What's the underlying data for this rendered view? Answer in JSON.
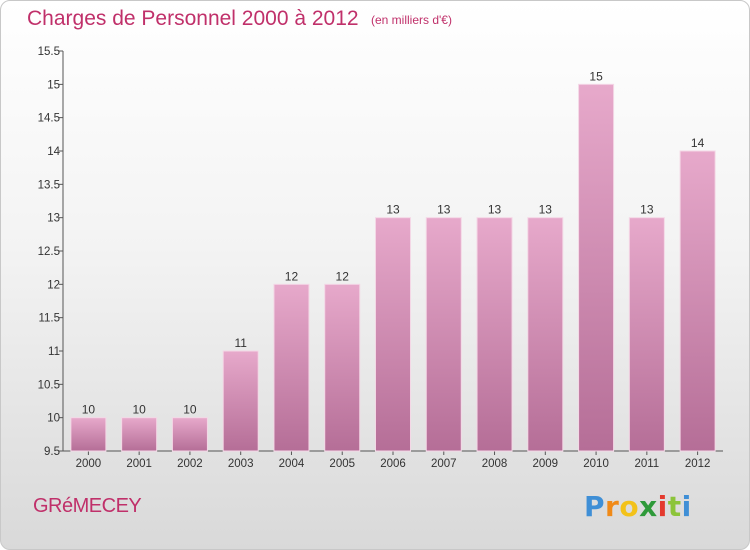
{
  "chart_data": {
    "type": "bar",
    "title": "Charges de Personnel 2000 à 2012",
    "subtitle": "(en milliers d'€)",
    "categories": [
      "2000",
      "2001",
      "2002",
      "2003",
      "2004",
      "2005",
      "2006",
      "2007",
      "2008",
      "2009",
      "2010",
      "2011",
      "2012"
    ],
    "values": [
      10,
      10,
      10,
      11,
      12,
      12,
      13,
      13,
      13,
      13,
      15,
      13,
      14
    ],
    "ylim": [
      9.5,
      15.5
    ],
    "yticks": [
      9.5,
      10,
      10.5,
      11,
      11.5,
      12,
      12.5,
      13,
      13.5,
      14,
      14.5,
      15,
      15.5
    ],
    "ytick_labels": [
      "9.5",
      "10",
      "10.5",
      "11",
      "11.5",
      "12",
      "12.5",
      "13",
      "13.5",
      "14",
      "14.5",
      "15",
      "15.5"
    ],
    "grid": false,
    "legend": "none",
    "bar_color": "#d27aa8"
  },
  "commune": "GRéMECEY",
  "logo": {
    "letters": [
      "P",
      "r",
      "o",
      "x",
      "i",
      "t",
      "i"
    ],
    "colors": [
      "#3f8fd6",
      "#f08a18",
      "#f3c21a",
      "#2f9a3a",
      "#e43a2e",
      "#8cc43a",
      "#3f8fd6"
    ]
  }
}
